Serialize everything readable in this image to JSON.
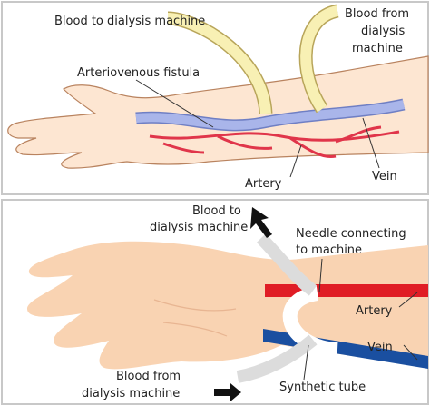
{
  "panels": [
    {
      "labels": [
        {
          "lines": [
            "Blood to dialysis machine"
          ]
        },
        {
          "lines": [
            "Blood from",
            "dialysis",
            "machine"
          ]
        },
        {
          "lines": [
            "Arteriovenous fistula"
          ]
        },
        {
          "lines": [
            "Artery"
          ]
        },
        {
          "lines": [
            "Vein"
          ]
        }
      ]
    },
    {
      "labels": [
        {
          "lines": [
            "Blood to",
            "dialysis machine"
          ]
        },
        {
          "lines": [
            "Needle connecting",
            "to machine"
          ]
        },
        {
          "lines": [
            "Artery"
          ]
        },
        {
          "lines": [
            "Vein"
          ]
        },
        {
          "lines": [
            "Blood from",
            "dialysis machine"
          ]
        },
        {
          "lines": [
            "Synthetic tube"
          ]
        }
      ]
    }
  ]
}
